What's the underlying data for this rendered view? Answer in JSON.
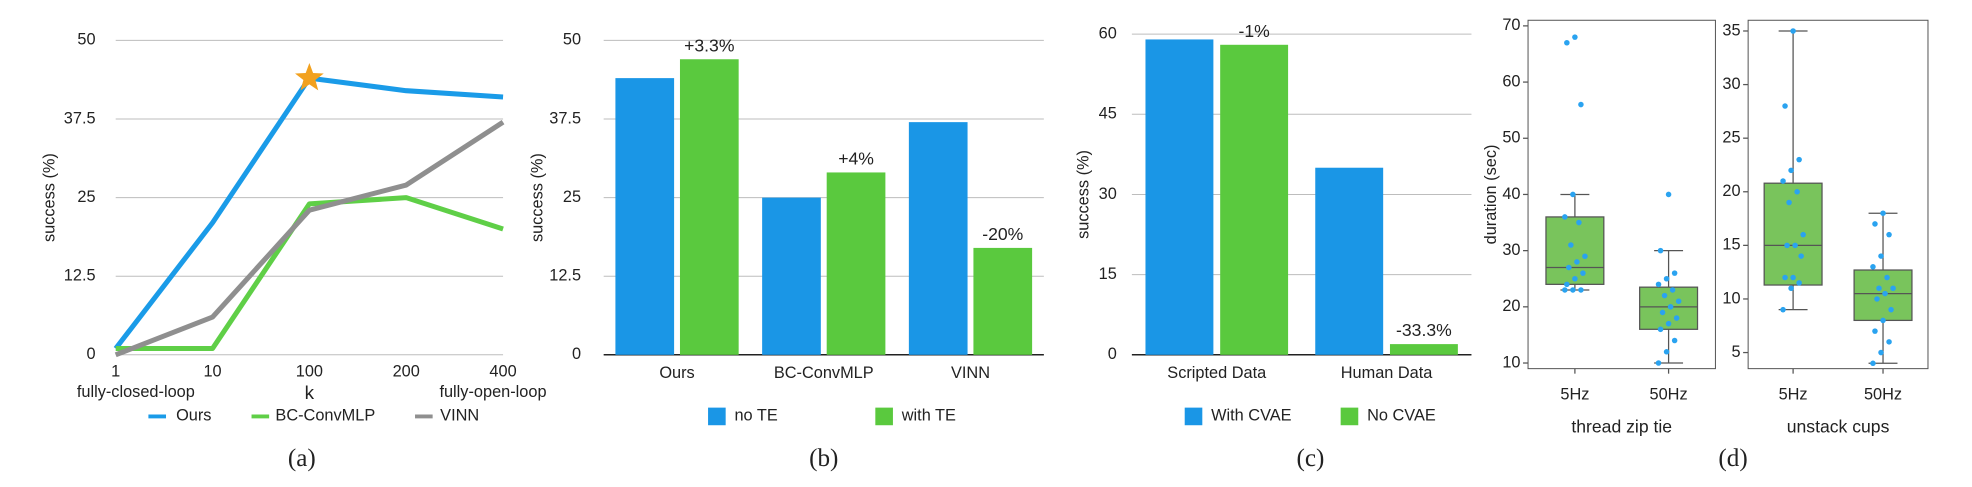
{
  "chart_data": [
    {
      "type": "line",
      "caption": "(a)",
      "ylabel": "success (%)",
      "xlabel": "k",
      "x_end_labels": [
        "fully-closed-loop",
        "fully-open-loop"
      ],
      "categories": [
        "1",
        "10",
        "100",
        "200",
        "400"
      ],
      "series": [
        {
          "name": "Ours",
          "color": "#1a9be8",
          "values": [
            1,
            21,
            44,
            42,
            41
          ]
        },
        {
          "name": "BC-ConvMLP",
          "color": "#5fcf47",
          "values": [
            1,
            1,
            24,
            25,
            20
          ]
        },
        {
          "name": "VINN",
          "color": "#8f8f8f",
          "values": [
            0,
            6,
            23,
            27,
            37
          ]
        }
      ],
      "highlight": {
        "series": 0,
        "index": 2,
        "color": "#f2a11f"
      },
      "ylim": [
        0,
        50
      ],
      "yticks": [
        0,
        12.5,
        25,
        37.5,
        50
      ],
      "grid": true
    },
    {
      "type": "bar",
      "caption": "(b)",
      "ylabel": "success (%)",
      "categories": [
        "Ours",
        "BC-ConvMLP",
        "VINN"
      ],
      "series": [
        {
          "name": "no TE",
          "color": "#1a96e6",
          "values": [
            44,
            25,
            37
          ]
        },
        {
          "name": "with TE",
          "color": "#5ac93e",
          "values": [
            47,
            29,
            17
          ]
        }
      ],
      "annotations": [
        "+3.3%",
        "+4%",
        "-20%"
      ],
      "ylim": [
        0,
        50
      ],
      "yticks": [
        0,
        12.5,
        25,
        37.5,
        50
      ],
      "grid": true
    },
    {
      "type": "bar",
      "caption": "(c)",
      "ylabel": "success (%)",
      "categories": [
        "Scripted Data",
        "Human Data"
      ],
      "series": [
        {
          "name": "With CVAE",
          "color": "#1a96e6",
          "values": [
            59,
            35
          ]
        },
        {
          "name": "No CVAE",
          "color": "#5ac93e",
          "values": [
            58,
            2
          ]
        }
      ],
      "annotations": [
        "-1%",
        "-33.3%"
      ],
      "ylim": [
        0,
        60
      ],
      "yticks": [
        0,
        15,
        30,
        45,
        60
      ],
      "grid": true
    },
    {
      "type": "box",
      "caption": "(d)",
      "ylabel": "duration (sec)",
      "xlabel": "thread zip tie",
      "categories": [
        "5Hz",
        "50Hz"
      ],
      "box_color": "#79c45c",
      "point_color": "#2aa3f0",
      "boxes": [
        {
          "whislo": 23,
          "q1": 24,
          "med": 27,
          "q3": 36,
          "whishi": 40,
          "points": [
            23,
            23,
            23,
            24,
            25,
            26,
            27,
            28,
            29,
            31,
            35,
            36,
            40,
            56,
            67,
            68
          ]
        },
        {
          "whislo": 10,
          "q1": 16,
          "med": 20,
          "q3": 23.5,
          "whishi": 30,
          "points": [
            10,
            12,
            14,
            16,
            17,
            18,
            19,
            20,
            21,
            22,
            23,
            24,
            25,
            26,
            30,
            40
          ]
        }
      ],
      "ylim": [
        9,
        71
      ],
      "yticks": [
        10,
        20,
        30,
        40,
        50,
        60,
        70
      ]
    },
    {
      "type": "box",
      "xlabel": "unstack cups",
      "categories": [
        "5Hz",
        "50Hz"
      ],
      "box_color": "#79c45c",
      "point_color": "#2aa3f0",
      "boxes": [
        {
          "whislo": 9,
          "q1": 11.3,
          "med": 15,
          "q3": 20.8,
          "whishi": 35,
          "points": [
            9,
            11,
            11.5,
            12,
            12,
            14,
            15,
            15,
            16,
            19,
            20,
            21,
            22,
            23,
            28,
            35
          ]
        },
        {
          "whislo": 4,
          "q1": 8,
          "med": 10.5,
          "q3": 12.7,
          "whishi": 18,
          "points": [
            4,
            5,
            6,
            7,
            8,
            9,
            10,
            10.5,
            11,
            11,
            12,
            13,
            14,
            16,
            17,
            18
          ]
        }
      ],
      "ylim": [
        3.5,
        36
      ],
      "yticks": [
        5,
        10,
        15,
        20,
        25,
        30,
        35
      ]
    }
  ]
}
